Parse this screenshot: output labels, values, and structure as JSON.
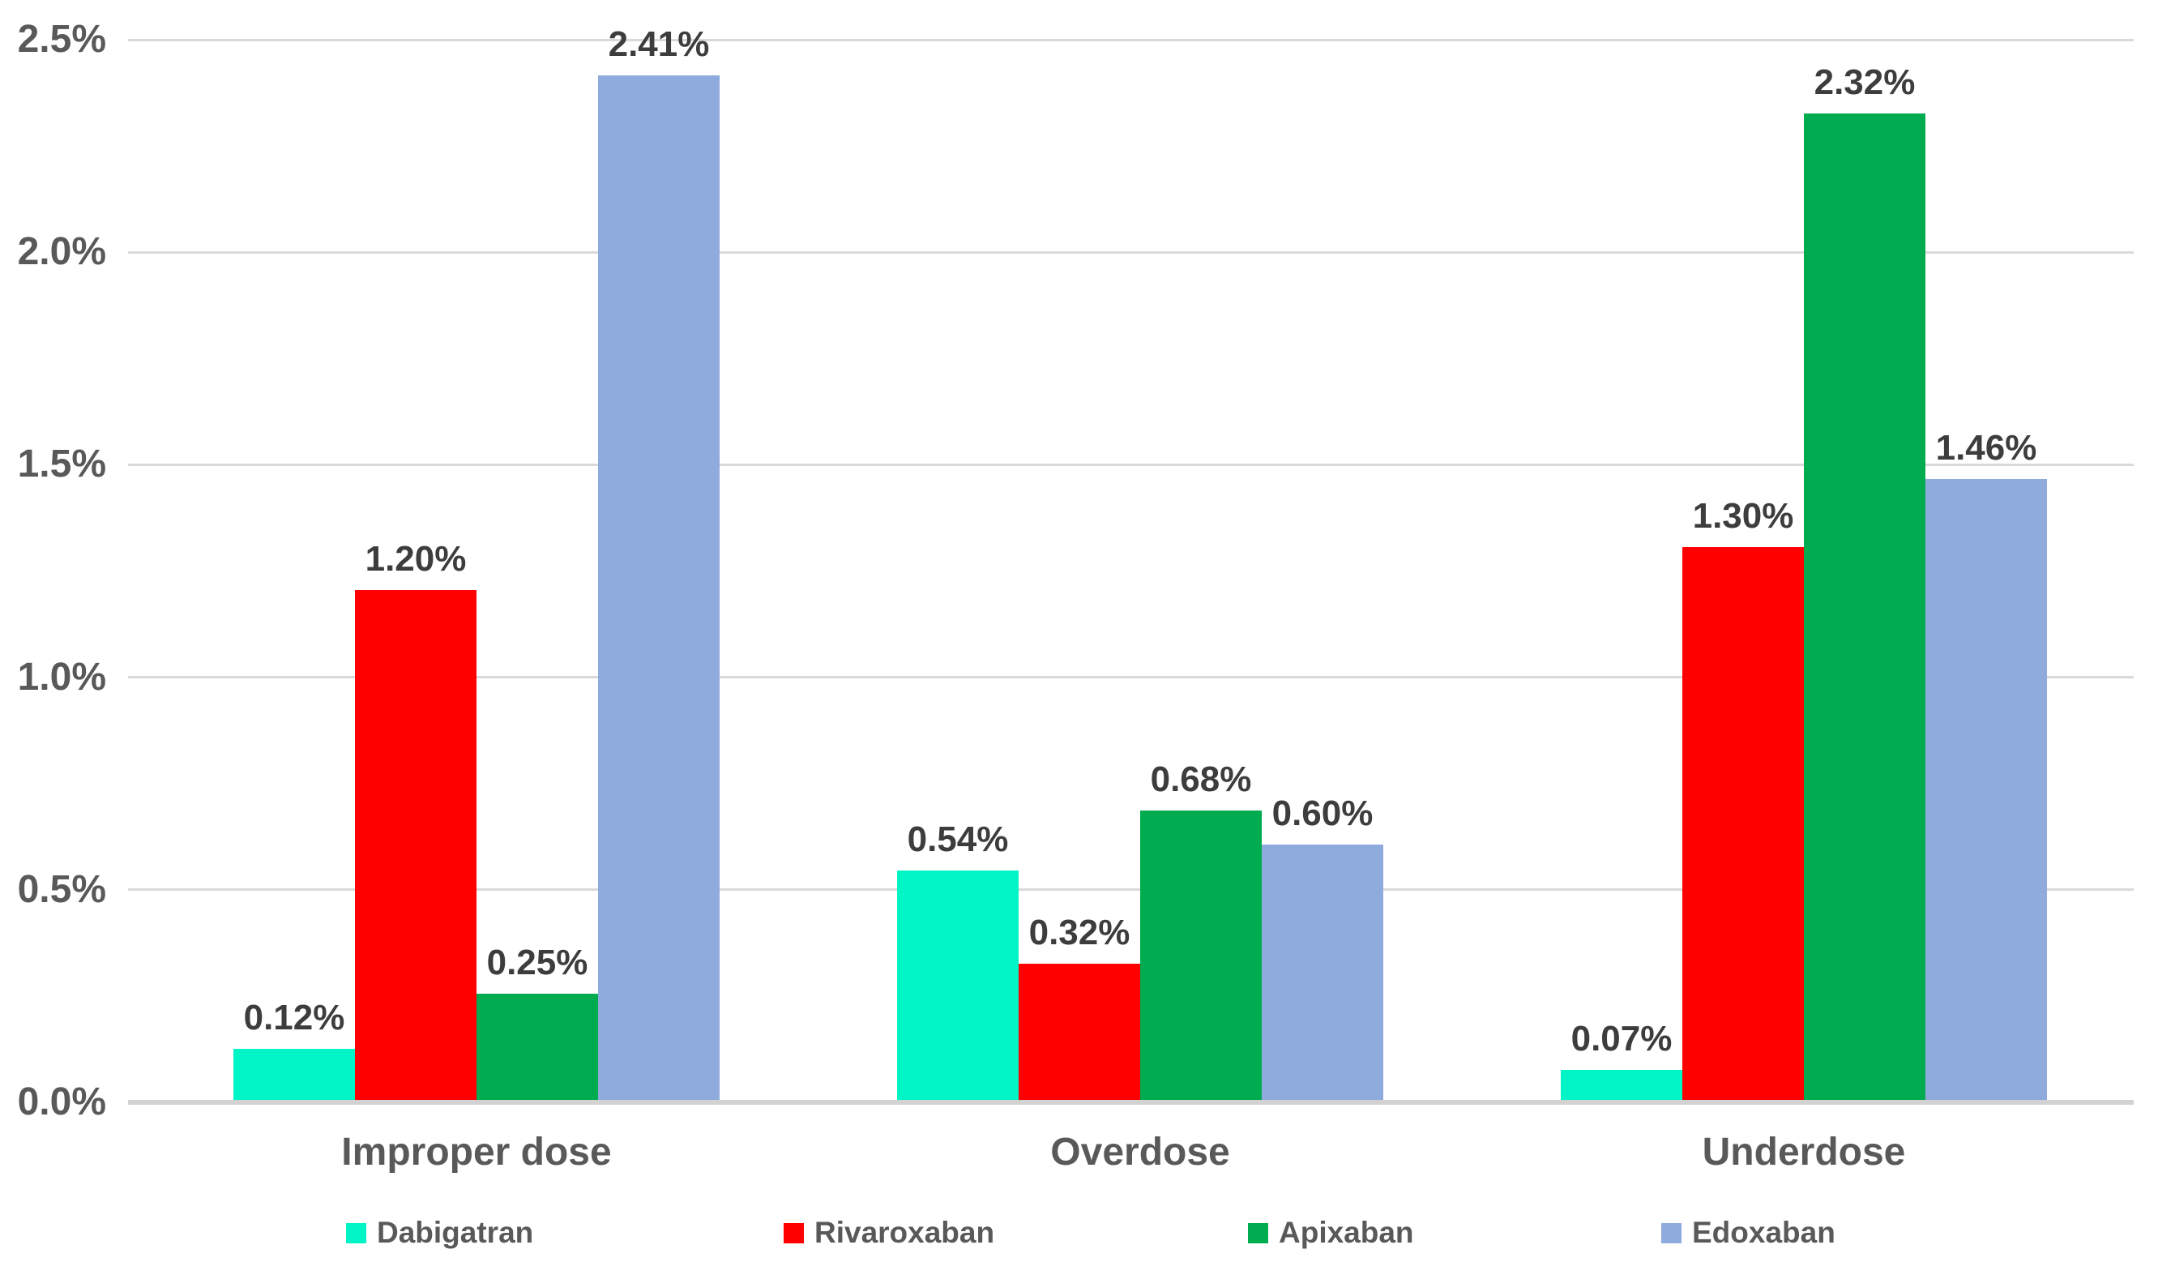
{
  "chart_data": {
    "type": "bar",
    "title": "",
    "categories": [
      "Improper dose",
      "Overdose",
      "Underdose"
    ],
    "series": [
      {
        "name": "Dabigatran",
        "color": "#00F5C6",
        "values": [
          0.12,
          0.54,
          0.07
        ],
        "data_labels": [
          "0.12%",
          "0.54%",
          "0.07%"
        ]
      },
      {
        "name": "Rivaroxaban",
        "color": "#FF0000",
        "values": [
          1.2,
          0.32,
          1.3
        ],
        "data_labels": [
          "1.20%",
          "0.32%",
          "1.30%"
        ]
      },
      {
        "name": "Apixaban",
        "color": "#00AC4F",
        "values": [
          0.25,
          0.68,
          2.32
        ],
        "data_labels": [
          "0.25%",
          "0.68%",
          "2.32%"
        ]
      },
      {
        "name": "Edoxaban",
        "color": "#8FAADC",
        "values": [
          2.41,
          0.6,
          1.46
        ],
        "data_labels": [
          "2.41%",
          "0.60%",
          "1.46%"
        ]
      }
    ],
    "y_axis": {
      "min": 0,
      "max": 2.5,
      "step": 0.5,
      "ticks": [
        "0.0%",
        "0.5%",
        "1.0%",
        "1.5%",
        "2.0%",
        "2.5%"
      ],
      "unit": "percent"
    },
    "x_axis": {
      "labels": [
        "Improper dose",
        "Overdose",
        "Underdose"
      ]
    },
    "legend": {
      "position": "bottom",
      "entries": [
        "Dabigatran",
        "Rivaroxaban",
        "Apixaban",
        "Edoxaban"
      ]
    },
    "grid": "horizontal",
    "colors": {
      "background": "#FFFFFF",
      "gridline": "#D9D9D9",
      "axis_line": "#D2D2D2",
      "tick_text": "#595959",
      "category_text": "#595959",
      "legend_text": "#595959",
      "value_label_text": "#3D3D3D"
    }
  }
}
